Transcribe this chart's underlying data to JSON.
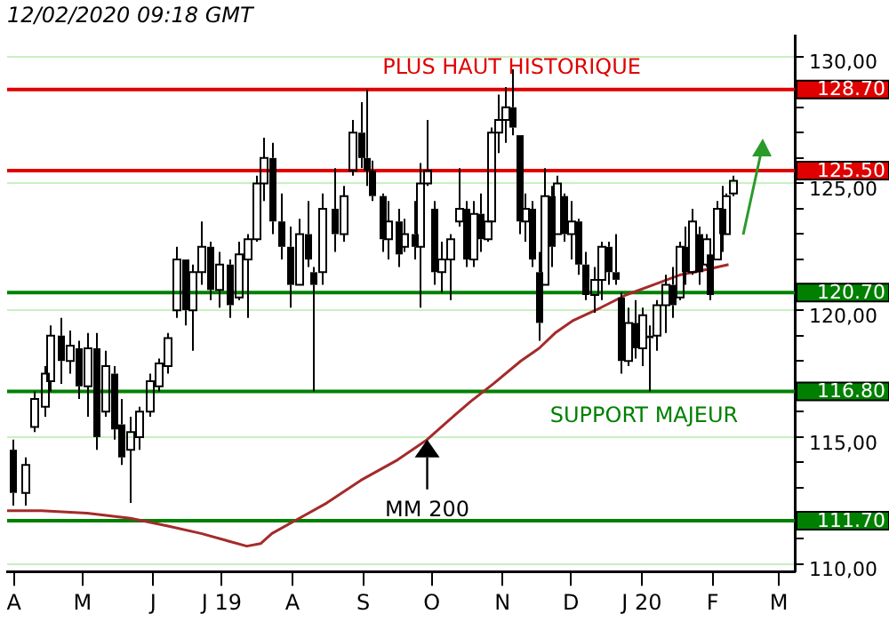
{
  "chart_data": {
    "type": "candlestick",
    "title": "12/02/2020 09:18 GMT",
    "series": [
      {
        "color": "#000000",
        "x": [
          "2019-03-31",
          "2019-04-06",
          "2019-04-10",
          "2019-04-14",
          "2019-04-17",
          "2019-04-21",
          "2019-04-25",
          "2019-04-29",
          "2019-05-03",
          "2019-05-07",
          "2019-05-11",
          "2019-05-15",
          "2019-05-18",
          "2019-05-22",
          "2019-05-26",
          "2019-05-30",
          "2019-06-03",
          "2019-06-07",
          "2019-06-11",
          "2019-06-15",
          "2019-06-18",
          "2019-06-22",
          "2019-06-26",
          "2019-06-30",
          "2019-07-04",
          "2019-07-08",
          "2019-07-12",
          "2019-07-16",
          "2019-07-19",
          "2019-07-23",
          "2019-07-27",
          "2019-07-31",
          "2019-08-04",
          "2019-08-08",
          "2019-08-10",
          "2019-08-14",
          "2019-08-19",
          "2019-08-23",
          "2019-08-27",
          "2019-08-31",
          "2019-09-02",
          "2019-09-05",
          "2019-09-09",
          "2019-09-12",
          "2019-09-16",
          "2019-09-19",
          "2019-09-23",
          "2019-09-26",
          "2019-09-29",
          "2019-10-02",
          "2019-10-05",
          "2019-10-09",
          "2019-10-13",
          "2019-10-16",
          "2019-10-19",
          "2019-10-22",
          "2019-10-25",
          "2019-10-27",
          "2019-10-30",
          "2019-11-02",
          "2019-11-05",
          "2019-11-08",
          "2019-11-11",
          "2019-11-14",
          "2019-11-17",
          "2019-11-19",
          "2019-11-22",
          "2019-11-25",
          "2019-11-28",
          "2019-12-01",
          "2019-12-04",
          "2019-12-07",
          "2019-12-11",
          "2019-12-14",
          "2019-12-17",
          "2019-12-20",
          "2019-12-23",
          "2019-12-26",
          "2019-12-29",
          "2020-01-01",
          "2020-01-04",
          "2020-01-07",
          "2020-01-11",
          "2020-01-14",
          "2020-01-17",
          "2020-01-20",
          "2020-01-23",
          "2020-01-26",
          "2020-01-29",
          "2020-01-31",
          "2020-02-03",
          "2020-02-05",
          "2020-02-07",
          "2020-02-10"
        ],
        "ohlc": [
          [
            114.5,
            114.9,
            112.3,
            112.8
          ],
          [
            112.8,
            114.2,
            112.3,
            113.9
          ],
          [
            115.4,
            116.8,
            115.2,
            116.5
          ],
          [
            116.2,
            117.8,
            115.8,
            117.5
          ],
          [
            117.2,
            119.4,
            116.8,
            119.0
          ],
          [
            119.0,
            119.7,
            117.1,
            118.0
          ],
          [
            118.0,
            119.2,
            117.5,
            118.6
          ],
          [
            118.5,
            118.8,
            116.5,
            117.0
          ],
          [
            117.0,
            119.1,
            115.8,
            118.5
          ],
          [
            118.5,
            119.1,
            114.5,
            115.0
          ],
          [
            116.0,
            118.4,
            115.8,
            117.8
          ],
          [
            117.5,
            117.8,
            114.9,
            115.3
          ],
          [
            115.5,
            116.5,
            113.9,
            114.2
          ],
          [
            114.5,
            115.8,
            112.4,
            115.2
          ],
          [
            115.0,
            116.2,
            114.5,
            116.0
          ],
          [
            116.0,
            117.5,
            115.8,
            117.2
          ],
          [
            117.0,
            118.1,
            116.8,
            117.9
          ],
          [
            117.8,
            119.1,
            117.5,
            118.9
          ],
          [
            120.0,
            122.5,
            119.7,
            122.0
          ],
          [
            122.0,
            122.0,
            119.4,
            120.0
          ],
          [
            120.0,
            121.8,
            118.4,
            121.5
          ],
          [
            121.5,
            123.5,
            121.0,
            122.5
          ],
          [
            122.5,
            122.7,
            120.4,
            120.8
          ],
          [
            120.8,
            122.3,
            120.1,
            121.8
          ],
          [
            121.8,
            122.0,
            119.7,
            120.2
          ],
          [
            120.5,
            122.7,
            120.4,
            122.2
          ],
          [
            122.0,
            123.0,
            119.7,
            122.8
          ],
          [
            122.8,
            125.3,
            122.7,
            125.0
          ],
          [
            125.0,
            126.8,
            124.3,
            126.0
          ],
          [
            126.0,
            126.6,
            123.0,
            123.5
          ],
          [
            123.5,
            124.6,
            122.0,
            122.5
          ],
          [
            122.5,
            123.3,
            120.1,
            121.0
          ],
          [
            121.0,
            123.6,
            121.0,
            123.0
          ],
          [
            123.0,
            124.3,
            121.7,
            122.0
          ],
          [
            121.5,
            121.7,
            116.8,
            121.0
          ],
          [
            121.5,
            124.6,
            121.0,
            124.0
          ],
          [
            124.0,
            125.6,
            122.3,
            123.0
          ],
          [
            123.0,
            124.9,
            122.7,
            124.5
          ],
          [
            125.5,
            127.5,
            125.3,
            127.0
          ],
          [
            127.0,
            128.2,
            125.6,
            126.0
          ],
          [
            126.0,
            128.7,
            124.9,
            125.5
          ],
          [
            125.5,
            125.9,
            124.3,
            124.5
          ],
          [
            124.5,
            124.6,
            122.3,
            122.8
          ],
          [
            122.8,
            124.3,
            122.0,
            123.5
          ],
          [
            123.5,
            124.0,
            121.7,
            122.2
          ],
          [
            122.5,
            123.6,
            122.3,
            123.0
          ],
          [
            123.0,
            124.3,
            122.0,
            122.5
          ],
          [
            122.5,
            125.8,
            120.1,
            125.0
          ],
          [
            125.0,
            127.5,
            124.9,
            125.5
          ],
          [
            124.0,
            124.3,
            121.0,
            121.5
          ],
          [
            121.5,
            122.7,
            120.7,
            122.0
          ],
          [
            122.0,
            123.0,
            120.4,
            122.8
          ],
          [
            123.5,
            125.6,
            123.3,
            124.0
          ],
          [
            124.0,
            124.3,
            121.7,
            122.0
          ],
          [
            122.0,
            124.3,
            121.7,
            123.8
          ],
          [
            123.8,
            124.6,
            122.3,
            122.8
          ],
          [
            122.8,
            124.3,
            122.7,
            123.5
          ],
          [
            123.5,
            127.2,
            123.3,
            127.0
          ],
          [
            127.0,
            128.5,
            126.2,
            127.5
          ],
          [
            127.5,
            128.8,
            126.6,
            128.0
          ],
          [
            128.0,
            129.5,
            126.9,
            127.2
          ],
          [
            126.9,
            126.9,
            123.0,
            123.5
          ],
          [
            123.5,
            124.6,
            122.7,
            124.0
          ],
          [
            124.0,
            124.3,
            121.7,
            122.0
          ],
          [
            121.5,
            122.3,
            118.8,
            119.5
          ],
          [
            121.0,
            125.6,
            121.0,
            124.5
          ],
          [
            124.5,
            124.9,
            121.7,
            122.5
          ],
          [
            123.0,
            125.3,
            123.0,
            125.0
          ],
          [
            124.5,
            124.6,
            122.7,
            123.0
          ],
          [
            123.0,
            124.3,
            122.0,
            123.5
          ],
          [
            123.5,
            123.6,
            121.4,
            121.8
          ],
          [
            121.8,
            122.3,
            120.4,
            120.6
          ],
          [
            120.6,
            121.7,
            119.9,
            121.2
          ],
          [
            121.2,
            122.7,
            120.4,
            122.5
          ],
          [
            122.5,
            122.7,
            121.0,
            121.5
          ],
          [
            121.5,
            123.0,
            121.0,
            121.2
          ],
          [
            120.5,
            120.7,
            117.5,
            118.0
          ],
          [
            118.0,
            120.1,
            117.8,
            119.5
          ],
          [
            119.5,
            120.4,
            118.1,
            118.5
          ],
          [
            118.5,
            120.1,
            117.8,
            119.8
          ],
          [
            119.0,
            119.4,
            116.8,
            118.9
          ],
          [
            119.0,
            120.4,
            118.4,
            120.2
          ],
          [
            120.2,
            121.4,
            119.1,
            121.0
          ],
          [
            121.0,
            121.7,
            119.7,
            120.2
          ],
          [
            120.5,
            122.7,
            120.4,
            122.5
          ],
          [
            122.5,
            123.3,
            121.0,
            121.5
          ],
          [
            121.5,
            124.0,
            121.4,
            123.5
          ],
          [
            123.0,
            123.3,
            121.0,
            121.5
          ],
          [
            121.8,
            123.0,
            121.7,
            122.8
          ],
          [
            122.2,
            122.3,
            120.4,
            120.6
          ],
          [
            122.0,
            124.3,
            122.0,
            124.0
          ],
          [
            124.0,
            124.9,
            122.3,
            123.0
          ],
          [
            123.0,
            124.6,
            123.0,
            124.5
          ],
          [
            124.6,
            125.3,
            124.5,
            125.1
          ]
        ]
      },
      {
        "type": "line",
        "color": "#a52a2a",
        "x": [
          "2019-03-29",
          "2019-04-13",
          "2019-05-03",
          "2019-05-22",
          "2019-06-07",
          "2019-06-22",
          "2019-07-04",
          "2019-07-12",
          "2019-07-18",
          "2019-07-23",
          "2019-08-04",
          "2019-08-16",
          "2019-08-31",
          "2019-09-16",
          "2019-09-29",
          "2019-10-09",
          "2019-10-18",
          "2019-10-28",
          "2019-11-09",
          "2019-11-17",
          "2019-11-24",
          "2019-12-02",
          "2019-12-14",
          "2019-12-25",
          "2020-01-06",
          "2020-01-18",
          "2020-01-29",
          "2020-02-08"
        ],
        "values": [
          112.1,
          112.1,
          112.0,
          111.8,
          111.5,
          111.2,
          110.9,
          110.7,
          110.8,
          111.2,
          111.8,
          112.4,
          113.3,
          114.1,
          114.9,
          115.7,
          116.4,
          117.1,
          118.0,
          118.5,
          119.1,
          119.6,
          120.1,
          120.6,
          121.0,
          121.4,
          121.6,
          121.8
        ]
      }
    ],
    "xlim": [
      "2019-03-29",
      "2020-03-08"
    ],
    "xticks": [
      {
        "value": "2019-04-01",
        "label": "A"
      },
      {
        "value": "2019-05-01",
        "label": "M"
      },
      {
        "value": "2019-06-01",
        "label": "J"
      },
      {
        "value": "2019-07-01",
        "label": "J 19"
      },
      {
        "value": "2019-08-01",
        "label": "A"
      },
      {
        "value": "2019-09-01",
        "label": "S"
      },
      {
        "value": "2019-10-01",
        "label": "O"
      },
      {
        "value": "2019-11-01",
        "label": "N"
      },
      {
        "value": "2019-12-01",
        "label": "D"
      },
      {
        "value": "2020-01-01",
        "label": "J 20"
      },
      {
        "value": "2020-02-01",
        "label": "F"
      },
      {
        "value": "2020-03-01",
        "label": "M"
      }
    ],
    "ylim": [
      109.7,
      130.8
    ],
    "yticks": [
      {
        "value": 110,
        "label": "110,00"
      },
      {
        "value": 111,
        "label": null
      },
      {
        "value": 112,
        "label": null
      },
      {
        "value": 113,
        "label": null
      },
      {
        "value": 114,
        "label": null
      },
      {
        "value": 115,
        "label": "115,00"
      },
      {
        "value": 116,
        "label": null
      },
      {
        "value": 117,
        "label": null
      },
      {
        "value": 118,
        "label": null
      },
      {
        "value": 119,
        "label": null
      },
      {
        "value": 120,
        "label": "120,00"
      },
      {
        "value": 121,
        "label": null
      },
      {
        "value": 122,
        "label": null
      },
      {
        "value": 123,
        "label": null
      },
      {
        "value": 124,
        "label": null
      },
      {
        "value": 125,
        "label": "125,00"
      },
      {
        "value": 126,
        "label": null
      },
      {
        "value": 127,
        "label": null
      },
      {
        "value": 128,
        "label": null
      },
      {
        "value": 129,
        "label": null
      },
      {
        "value": 130,
        "label": "130,00"
      }
    ],
    "ref_lines": [
      {
        "axis": "y",
        "value": 128.7,
        "label": "128.70",
        "color": "#e00000"
      },
      {
        "axis": "y",
        "value": 125.5,
        "label": "125.50",
        "color": "#e00000"
      },
      {
        "axis": "y",
        "value": 120.7,
        "label": "120.70",
        "color": "#008000"
      },
      {
        "axis": "y",
        "value": 116.8,
        "label": "116.80",
        "color": "#008000"
      },
      {
        "axis": "y",
        "value": 111.7,
        "label": "111.70",
        "color": "#008000"
      }
    ],
    "annotations": [
      {
        "text": "PLUS HAUT HISTORIQUE",
        "x": "2019-11-05",
        "y": 128.7
      },
      {
        "text": "SUPPORT MAJEUR",
        "x": "2020-01-02",
        "y": 116.8
      },
      {
        "text": "MM 200",
        "x": "2019-09-29",
        "y": 114.9
      }
    ],
    "grid": "y",
    "legend": false
  }
}
